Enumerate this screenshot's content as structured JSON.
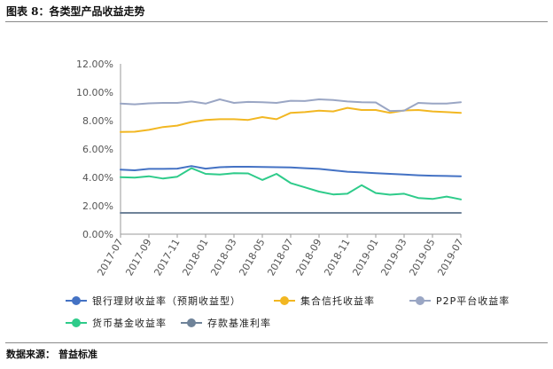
{
  "figure": {
    "title": "图表 8：各类型产品收益走势",
    "source_label": "数据来源：",
    "source_value": "普益标准"
  },
  "chart_data": {
    "type": "line",
    "x": [
      "2017-07",
      "2017-08",
      "2017-09",
      "2017-10",
      "2017-11",
      "2017-12",
      "2018-01",
      "2018-02",
      "2018-03",
      "2018-04",
      "2018-05",
      "2018-06",
      "2018-07",
      "2018-08",
      "2018-09",
      "2018-10",
      "2018-11",
      "2018-12",
      "2019-01",
      "2019-02",
      "2019-03",
      "2019-04",
      "2019-05",
      "2019-06",
      "2019-07"
    ],
    "x_tick_labels": [
      "2017-07",
      "2017-09",
      "2017-11",
      "2018-01",
      "2018-03",
      "2018-05",
      "2018-07",
      "2018-09",
      "2018-11",
      "2019-01",
      "2019-03",
      "2019-05",
      "2019-07"
    ],
    "y_tick_labels": [
      "0.00%",
      "2.00%",
      "4.00%",
      "6.00%",
      "8.00%",
      "10.00%",
      "12.00%"
    ],
    "ylim": [
      0,
      12
    ],
    "grid": false,
    "legend_position": "bottom",
    "series": [
      {
        "name": "银行理财收益率（预期收益型）",
        "color": "#4472C4",
        "values": [
          4.55,
          4.5,
          4.6,
          4.6,
          4.62,
          4.8,
          4.62,
          4.72,
          4.75,
          4.75,
          4.74,
          4.72,
          4.7,
          4.65,
          4.6,
          4.5,
          4.4,
          4.35,
          4.3,
          4.25,
          4.2,
          4.15,
          4.12,
          4.1,
          4.08
        ]
      },
      {
        "name": "集合信托收益率",
        "color": "#F2B722",
        "values": [
          7.2,
          7.22,
          7.35,
          7.55,
          7.65,
          7.9,
          8.05,
          8.1,
          8.1,
          8.05,
          8.25,
          8.1,
          8.55,
          8.6,
          8.7,
          8.65,
          8.9,
          8.75,
          8.75,
          8.55,
          8.72,
          8.75,
          8.65,
          8.6,
          8.55
        ]
      },
      {
        "name": "P2P平台收益率",
        "color": "#9AA6C4",
        "values": [
          9.2,
          9.15,
          9.22,
          9.25,
          9.25,
          9.35,
          9.2,
          9.5,
          9.25,
          9.32,
          9.3,
          9.25,
          9.4,
          9.38,
          9.5,
          9.45,
          9.35,
          9.3,
          9.28,
          8.68,
          8.7,
          9.25,
          9.2,
          9.2,
          9.3
        ]
      },
      {
        "name": "货币基金收益率",
        "color": "#2ECB8A",
        "values": [
          4.02,
          3.98,
          4.08,
          3.92,
          4.05,
          4.65,
          4.25,
          4.2,
          4.3,
          4.28,
          3.82,
          4.25,
          3.6,
          3.3,
          3.0,
          2.8,
          2.85,
          3.45,
          2.9,
          2.78,
          2.85,
          2.55,
          2.48,
          2.65,
          2.45
        ]
      },
      {
        "name": "存款基准利率",
        "color": "#6F8399",
        "values": [
          1.5,
          1.5,
          1.5,
          1.5,
          1.5,
          1.5,
          1.5,
          1.5,
          1.5,
          1.5,
          1.5,
          1.5,
          1.5,
          1.5,
          1.5,
          1.5,
          1.5,
          1.5,
          1.5,
          1.5,
          1.5,
          1.5,
          1.5,
          1.5,
          1.5
        ]
      }
    ]
  }
}
